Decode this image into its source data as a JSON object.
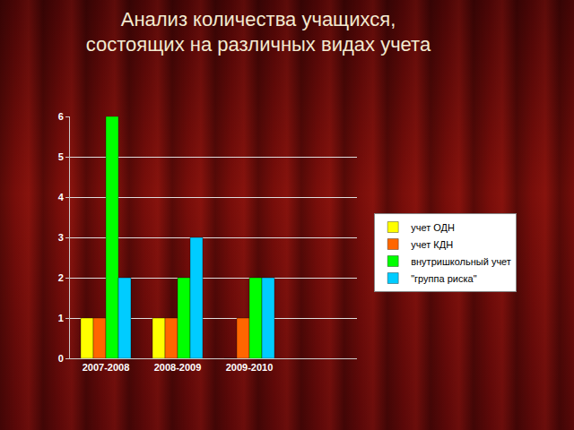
{
  "chart_data": {
    "type": "bar",
    "title": "Анализ количества учащихся, состоящих на различных видах учета",
    "categories": [
      "2007-2008",
      "2008-2009",
      "2009-2010",
      null
    ],
    "series": [
      {
        "name": "учет ОДН",
        "color": "#ffff00",
        "values": [
          1,
          1,
          0,
          null
        ]
      },
      {
        "name": "учет КДН",
        "color": "#ff6600",
        "values": [
          1,
          1,
          1,
          null
        ]
      },
      {
        "name": "внутришкольный учет",
        "color": "#00ff00",
        "values": [
          6,
          2,
          2,
          null
        ]
      },
      {
        "name": "\"группа риска\"",
        "color": "#00ccff",
        "values": [
          2,
          3,
          2,
          null
        ]
      }
    ],
    "ylim": [
      0,
      6
    ],
    "yticks": [
      0,
      1,
      2,
      3,
      4,
      5,
      6
    ],
    "grid": true,
    "legend": "right"
  }
}
